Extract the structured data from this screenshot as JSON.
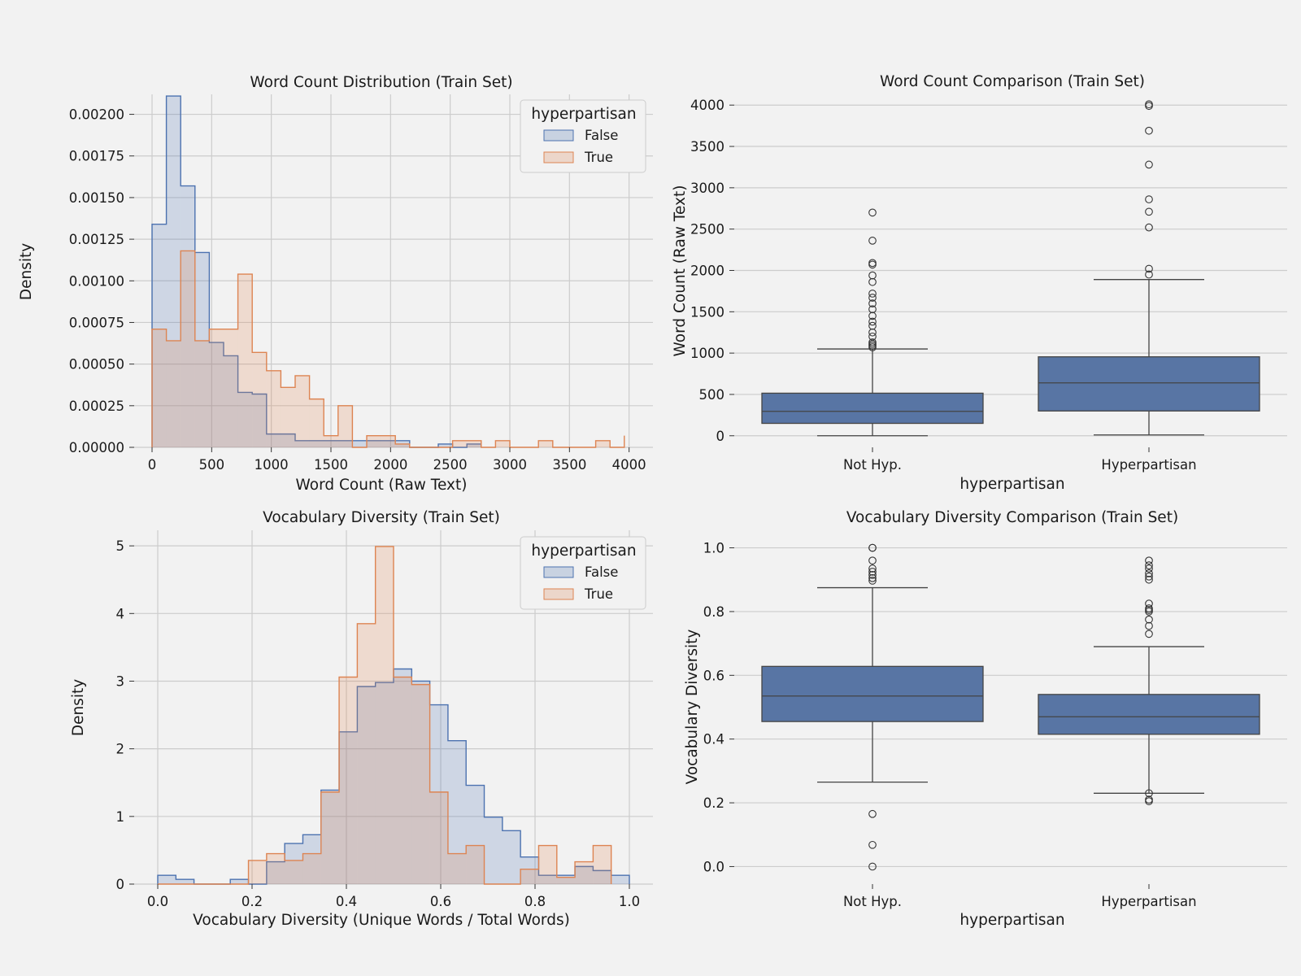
{
  "colors": {
    "false": "#4c72b0",
    "true": "#dd8452",
    "box": "#5875a4",
    "grid": "#cccccc",
    "bg": "#f2f2f2"
  },
  "chart_data": [
    {
      "type": "histogram",
      "title": "Word Count Distribution (Train Set)",
      "xlabel": "Word Count (Raw Text)",
      "ylabel": "Density",
      "xlim": [
        -150,
        4200
      ],
      "ylim": [
        0,
        0.00212
      ],
      "xticks": [
        0,
        500,
        1000,
        1500,
        2000,
        2500,
        3000,
        3500,
        4000
      ],
      "xtick_labels": [
        "0",
        "500",
        "1000",
        "1500",
        "2000",
        "2500",
        "3000",
        "3500",
        "4000"
      ],
      "yticks": [
        0,
        0.00025,
        0.0005,
        0.00075,
        0.001,
        0.00125,
        0.0015,
        0.00175,
        0.002
      ],
      "ytick_labels": [
        "0.00000",
        "0.00025",
        "0.00050",
        "0.00075",
        "0.00100",
        "0.00125",
        "0.00150",
        "0.00175",
        "0.00200"
      ],
      "legend": {
        "title": "hyperpartisan",
        "labels": [
          "False",
          "True"
        ],
        "position": "top-right"
      },
      "series": [
        {
          "name": "False",
          "edges": [
            0,
            120,
            240,
            360,
            480,
            600,
            720,
            840,
            960,
            1080,
            1200,
            1320,
            1440,
            1560,
            1680,
            1800,
            1920,
            2040,
            2160,
            2280,
            2400,
            2520,
            2640,
            2760
          ],
          "values": [
            0.00134,
            0.00211,
            0.00157,
            0.00117,
            0.00063,
            0.00055,
            0.00033,
            0.00032,
            8e-05,
            8e-05,
            4e-05,
            4e-05,
            4e-05,
            4e-05,
            4e-05,
            4e-05,
            4e-05,
            4e-05,
            0,
            0,
            2e-05,
            0,
            2e-05
          ]
        },
        {
          "name": "True",
          "edges": [
            0,
            120,
            240,
            360,
            480,
            600,
            720,
            840,
            960,
            1080,
            1200,
            1320,
            1440,
            1560,
            1680,
            1800,
            1920,
            2040,
            2160,
            2280,
            2400,
            2520,
            2640,
            2760,
            2880,
            3000,
            3120,
            3240,
            3360,
            3480,
            3600,
            3720,
            3840,
            3960
          ],
          "values": [
            0.00071,
            0.00064,
            0.00118,
            0.00064,
            0.00071,
            0.00071,
            0.00104,
            0.00057,
            0.00046,
            0.00036,
            0.00043,
            0.00029,
            7e-05,
            0.00025,
            0,
            7e-05,
            7e-05,
            2e-05,
            0,
            0,
            0,
            4e-05,
            4e-05,
            0,
            4e-05,
            0,
            0,
            4e-05,
            0,
            0,
            0,
            4e-05,
            0,
            7e-05
          ]
        }
      ]
    },
    {
      "type": "box",
      "title": "Word Count Comparison (Train Set)",
      "xlabel": "hyperpartisan",
      "ylabel": "Word Count (Raw Text)",
      "categories": [
        "Not Hyp.",
        "Hyperpartisan"
      ],
      "ylim": [
        -140,
        4130
      ],
      "yticks": [
        0,
        500,
        1000,
        1500,
        2000,
        2500,
        3000,
        3500,
        4000
      ],
      "ytick_labels": [
        "0",
        "500",
        "1000",
        "1500",
        "2000",
        "2500",
        "3000",
        "3500",
        "4000"
      ],
      "boxes": [
        {
          "category": "Not Hyp.",
          "whisker_low": 0,
          "q1": 150,
          "median": 295,
          "q3": 515,
          "whisker_high": 1050,
          "outliers": [
            1070,
            1090,
            1110,
            1130,
            1200,
            1250,
            1330,
            1380,
            1450,
            1530,
            1600,
            1670,
            1720,
            1860,
            1940,
            2070,
            2090,
            2360,
            2700
          ]
        },
        {
          "category": "Hyperpartisan",
          "whisker_low": 10,
          "q1": 300,
          "median": 640,
          "q3": 955,
          "whisker_high": 1890,
          "outliers": [
            1950,
            2020,
            2520,
            2710,
            2860,
            3280,
            3690,
            3990,
            4010
          ]
        }
      ]
    },
    {
      "type": "histogram",
      "title": "Vocabulary Diversity (Train Set)",
      "xlabel": "Vocabulary Diversity (Unique Words / Total Words)",
      "ylabel": "Density",
      "xlim": [
        -0.05,
        1.05
      ],
      "ylim": [
        0,
        5.23
      ],
      "xticks": [
        0,
        0.2,
        0.4,
        0.6,
        0.8,
        1.0
      ],
      "xtick_labels": [
        "0.0",
        "0.2",
        "0.4",
        "0.6",
        "0.8",
        "1.0"
      ],
      "yticks": [
        0,
        1,
        2,
        3,
        4,
        5
      ],
      "ytick_labels": [
        "0",
        "1",
        "2",
        "3",
        "4",
        "5"
      ],
      "legend": {
        "title": "hyperpartisan",
        "labels": [
          "False",
          "True"
        ],
        "position": "top-right"
      },
      "series": [
        {
          "name": "False",
          "edges": [
            0,
            0.0385,
            0.0769,
            0.1154,
            0.1538,
            0.1923,
            0.2308,
            0.2692,
            0.3077,
            0.3462,
            0.3846,
            0.4231,
            0.4615,
            0.5,
            0.5385,
            0.5769,
            0.6154,
            0.6538,
            0.6923,
            0.7308,
            0.7692,
            0.8077,
            0.8462,
            0.8846,
            0.9231,
            0.9615,
            1.0
          ],
          "values": [
            0.13,
            0.07,
            0,
            0,
            0.07,
            0,
            0.33,
            0.6,
            0.73,
            1.39,
            2.25,
            2.92,
            2.98,
            3.18,
            3.0,
            2.65,
            2.12,
            1.46,
            0.99,
            0.79,
            0.4,
            0.13,
            0.13,
            0.26,
            0.2,
            0.13
          ]
        },
        {
          "name": "True",
          "edges": [
            0,
            0.0385,
            0.0769,
            0.1154,
            0.1538,
            0.1923,
            0.2308,
            0.2692,
            0.3077,
            0.3462,
            0.3846,
            0.4231,
            0.4615,
            0.5,
            0.5385,
            0.5769,
            0.6154,
            0.6538,
            0.6923,
            0.7308,
            0.7692,
            0.8077,
            0.8462,
            0.8846,
            0.9231,
            0.9615
          ],
          "values": [
            0,
            0,
            0,
            0,
            0,
            0.35,
            0.45,
            0.35,
            0.45,
            1.36,
            3.06,
            3.85,
            4.99,
            3.06,
            2.95,
            1.36,
            0.45,
            0.57,
            0,
            0,
            0.22,
            0.57,
            0.1,
            0.33,
            0.57
          ]
        }
      ]
    },
    {
      "type": "box",
      "title": "Vocabulary Diversity Comparison (Train Set)",
      "xlabel": "hyperpartisan",
      "ylabel": "Vocabulary Diversity",
      "categories": [
        "Not Hyp.",
        "Hyperpartisan"
      ],
      "ylim": [
        -0.055,
        1.055
      ],
      "yticks": [
        0,
        0.2,
        0.4,
        0.6,
        0.8,
        1.0
      ],
      "ytick_labels": [
        "0.0",
        "0.2",
        "0.4",
        "0.6",
        "0.8",
        "1.0"
      ],
      "boxes": [
        {
          "category": "Not Hyp.",
          "whisker_low": 0.265,
          "q1": 0.455,
          "median": 0.535,
          "q3": 0.628,
          "whisker_high": 0.875,
          "outliers": [
            0,
            0.068,
            0.165,
            0.897,
            0.905,
            0.915,
            0.925,
            0.935,
            0.96,
            1.0,
            1.0
          ]
        },
        {
          "category": "Hyperpartisan",
          "whisker_low": 0.23,
          "q1": 0.415,
          "median": 0.47,
          "q3": 0.54,
          "whisker_high": 0.69,
          "outliers": [
            0.205,
            0.21,
            0.23,
            0.73,
            0.755,
            0.775,
            0.8,
            0.805,
            0.81,
            0.825,
            0.9,
            0.91,
            0.92,
            0.935,
            0.945,
            0.96
          ]
        }
      ]
    }
  ]
}
